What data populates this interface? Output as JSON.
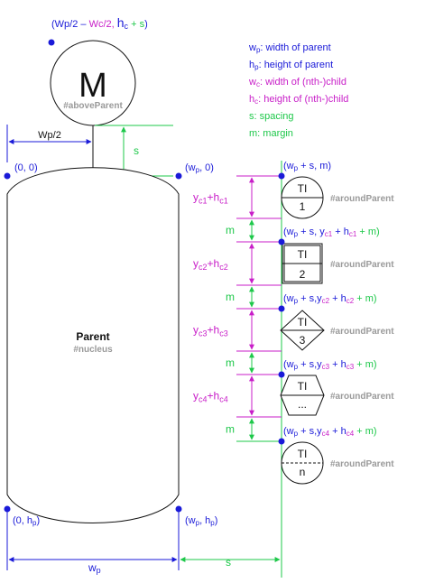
{
  "colors": {
    "blue": "#1a1ad8",
    "magenta": "#c81ec8",
    "green": "#1ec84a",
    "black": "#111111",
    "gray": "#9a9a9a"
  },
  "above": {
    "formula_open": "(Wp/2 – ",
    "formula_wc": "Wc/2, ",
    "formula_hc": "h",
    "formula_hc_sub": "c",
    "formula_s": " + s",
    "formula_close": ")",
    "letter": "M",
    "tag": "#aboveParent"
  },
  "labels": {
    "wp_half": "Wp/2",
    "s": "s",
    "m": "m",
    "origin": "(0, 0)",
    "wp0_pre": "(w",
    "wp0_sub": "p",
    "wp0_post": ", 0)",
    "bottom_left_pre": "(0, h",
    "bottom_left_sub": "p",
    "bottom_left_post": ")",
    "bottom_right_pre": "(w",
    "bottom_right_sub1": "p",
    "bottom_right_mid": ", h",
    "bottom_right_sub2": "p",
    "bottom_right_post": ")",
    "wp_bottom": "w",
    "wp_bottom_sub": "p",
    "s_bottom": "s"
  },
  "parent": {
    "title": "Parent",
    "tag": "#nucleus"
  },
  "legend": [
    {
      "sym": "w",
      "sub": "p",
      "text": ": width of parent",
      "color": "#1a1ad8"
    },
    {
      "sym": "h",
      "sub": "p",
      "text": ": height of parent",
      "color": "#1a1ad8"
    },
    {
      "sym": "w",
      "sub": "c",
      "text": ": width of (nth-)child",
      "color": "#c81ec8"
    },
    {
      "sym": "h",
      "sub": "c",
      "text": ": height of (nth-)child",
      "color": "#c81ec8"
    },
    {
      "sym": "s",
      "sub": "",
      "text": ":  spacing",
      "color": "#1ec84a"
    },
    {
      "sym": "m",
      "sub": "",
      "text": ": margin",
      "color": "#1ec84a"
    }
  ],
  "children": [
    {
      "shape": "circle",
      "top": "TI",
      "bottom": "1",
      "tag": "#aroundParent"
    },
    {
      "shape": "square",
      "top": "TI",
      "bottom": "2",
      "tag": "#aroundParent"
    },
    {
      "shape": "diamond",
      "top": "TI",
      "bottom": "3",
      "tag": "#aroundParent"
    },
    {
      "shape": "hexagon",
      "top": "TI",
      "bottom": "...",
      "tag": "#aroundParent"
    },
    {
      "shape": "circle",
      "top": "TI",
      "bottom": "n",
      "tag": "#aroundParent"
    }
  ],
  "positions": [
    {
      "parts": [
        [
          "(w",
          "blue"
        ],
        [
          "p",
          "blue",
          "sub"
        ],
        [
          " + s, m)",
          "blue"
        ]
      ]
    },
    {
      "parts": [
        [
          "(w",
          "blue"
        ],
        [
          "p",
          "blue",
          "sub"
        ],
        [
          " + s, y",
          "blue"
        ],
        [
          "c1",
          "magenta",
          "sub"
        ],
        [
          " + h",
          "blue"
        ],
        [
          "c1",
          "magenta",
          "sub"
        ],
        [
          " + m)",
          "green"
        ]
      ]
    },
    {
      "parts": [
        [
          "(w",
          "blue"
        ],
        [
          "p",
          "blue",
          "sub"
        ],
        [
          " + s,y",
          "blue"
        ],
        [
          "c2",
          "magenta",
          "sub"
        ],
        [
          " + h",
          "blue"
        ],
        [
          "c2",
          "magenta",
          "sub"
        ],
        [
          " + m)",
          "green"
        ]
      ]
    },
    {
      "parts": [
        [
          "(w",
          "blue"
        ],
        [
          "p",
          "blue",
          "sub"
        ],
        [
          " + s,y",
          "blue"
        ],
        [
          "c3",
          "magenta",
          "sub"
        ],
        [
          " + h",
          "blue"
        ],
        [
          "c3",
          "magenta",
          "sub"
        ],
        [
          " + m)",
          "green"
        ]
      ]
    },
    {
      "parts": [
        [
          "(w",
          "blue"
        ],
        [
          "p",
          "blue",
          "sub"
        ],
        [
          " + s,y",
          "blue"
        ],
        [
          "c4",
          "magenta",
          "sub"
        ],
        [
          " + h",
          "blue"
        ],
        [
          "c4",
          "magenta",
          "sub"
        ],
        [
          " + m)",
          "green"
        ]
      ]
    }
  ],
  "dims": [
    {
      "main": "y",
      "sub1": "c1",
      "plus": "+h",
      "sub2": "c1"
    },
    {
      "main": "y",
      "sub1": "c2",
      "plus": "+h",
      "sub2": "c2"
    },
    {
      "main": "y",
      "sub1": "c3",
      "plus": "+h",
      "sub2": "c3"
    },
    {
      "main": "y",
      "sub1": "c4",
      "plus": "+h",
      "sub2": "c4"
    }
  ]
}
